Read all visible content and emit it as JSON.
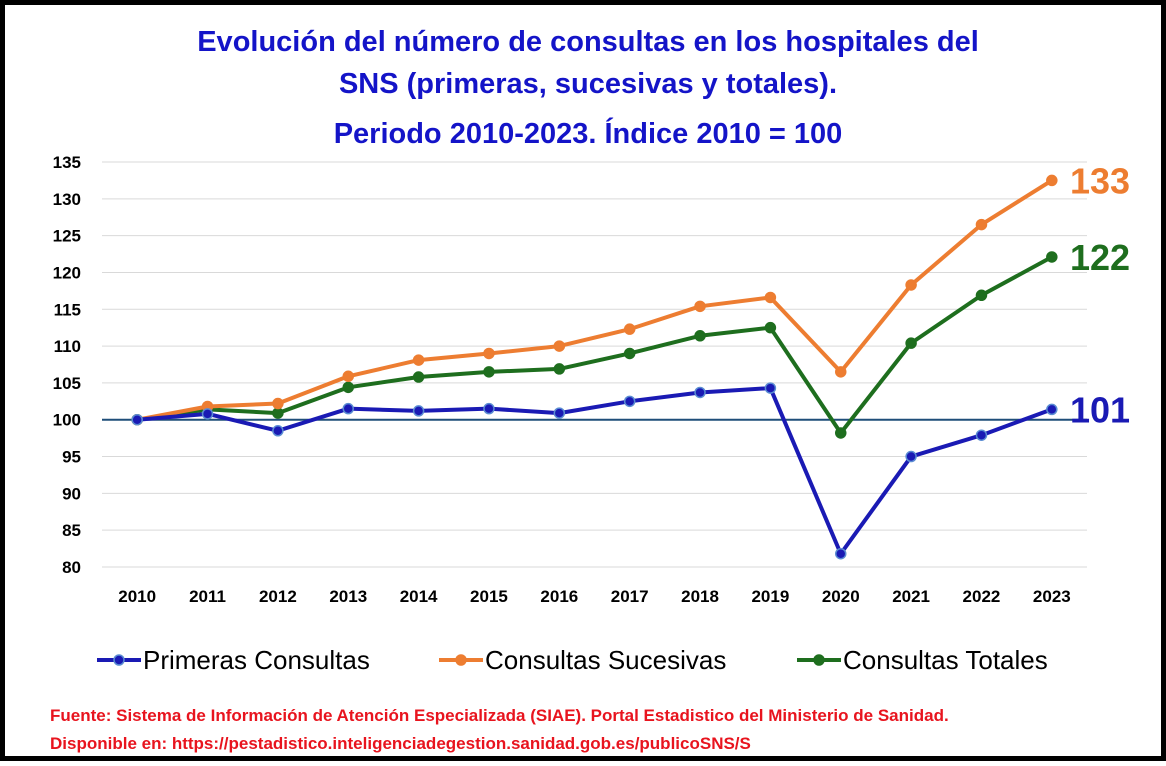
{
  "chart_data": {
    "type": "line",
    "title_lines": [
      "Evolución del número de consultas en los hospitales del",
      "SNS (primeras, sucesivas y totales).",
      "Periodo 2010-2023. Índice 2010 = 100"
    ],
    "categories": [
      "2010",
      "2011",
      "2012",
      "2013",
      "2014",
      "2015",
      "2016",
      "2017",
      "2018",
      "2019",
      "2020",
      "2021",
      "2022",
      "2023"
    ],
    "ylim": [
      80,
      135
    ],
    "yticks": [
      "80",
      "85",
      "90",
      "95",
      "100",
      "105",
      "110",
      "115",
      "120",
      "125",
      "130",
      "135"
    ],
    "grid": true,
    "reference_line": 100,
    "series": [
      {
        "name": "Primeras Consultas",
        "color": "#1a1ab4",
        "end_label": "101",
        "values": [
          100,
          100.8,
          98.5,
          101.5,
          101.2,
          101.5,
          100.9,
          102.5,
          103.7,
          104.3,
          81.8,
          95.0,
          97.9,
          101.4
        ]
      },
      {
        "name": "Consultas Sucesivas",
        "color": "#ed7d31",
        "end_label": "133",
        "values": [
          100,
          101.8,
          102.2,
          105.9,
          108.1,
          109.0,
          110.0,
          112.3,
          115.4,
          116.6,
          106.5,
          118.3,
          126.5,
          132.5
        ]
      },
      {
        "name": "Consultas Totales",
        "color": "#1e6e1e",
        "end_label": "122",
        "values": [
          100,
          101.4,
          100.9,
          104.4,
          105.8,
          106.5,
          106.9,
          109.0,
          111.4,
          112.5,
          98.2,
          110.4,
          116.9,
          122.1
        ]
      }
    ],
    "legend_position": "bottom",
    "source_lines": [
      "Fuente: Sistema de Información de Atención Especializada (SIAE). Portal Estadistico del Ministerio de Sanidad.",
      "Disponible en: https://pestadistico.inteligenciadegestion.sanidad.gob.es/publicoSNS/S"
    ],
    "colors": {
      "title": "#1414c8",
      "grid": "#d9d9d9",
      "reference": "#1f4e79",
      "source": "#e8141e"
    }
  }
}
